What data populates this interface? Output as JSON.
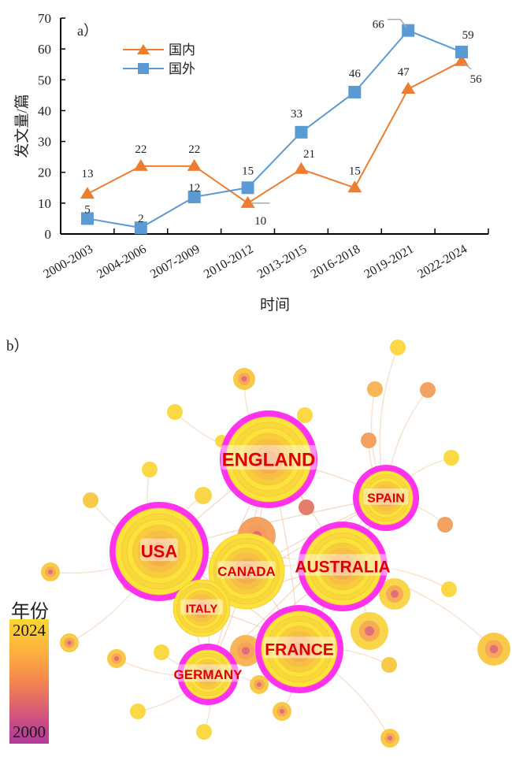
{
  "chart_data": [
    {
      "type": "line",
      "panel_label": "a）",
      "title": "",
      "xlabel": "时间",
      "ylabel": "发文量/篇",
      "ylim": [
        0,
        70
      ],
      "yticks": [
        0,
        10,
        20,
        30,
        40,
        50,
        60,
        70
      ],
      "categories": [
        "2000-2003",
        "2004-2006",
        "2007-2009",
        "2010-2012",
        "2013-2015",
        "2016-2018",
        "2019-2021",
        "2022-2024"
      ],
      "legend_position": "top-left",
      "grid": false,
      "series": [
        {
          "name": "国内",
          "marker": "triangle",
          "color": "#ed7d31",
          "values": [
            13,
            22,
            22,
            10,
            21,
            15,
            47,
            56
          ]
        },
        {
          "name": "国外",
          "marker": "square",
          "color": "#5b9bd5",
          "values": [
            5,
            2,
            12,
            15,
            33,
            46,
            66,
            59
          ]
        }
      ]
    },
    {
      "type": "network",
      "panel_label": "b）",
      "title": "",
      "colorbar": {
        "title": "年份",
        "min_label": "2000",
        "max_label": "2024",
        "min": 2000,
        "max": 2024
      },
      "labeled_nodes": [
        "ENGLAND",
        "SPAIN",
        "USA",
        "AUSTRALIA",
        "CANADA",
        "ITALY",
        "FRANCE",
        "GERMANY"
      ],
      "high_centrality_nodes": [
        "ENGLAND",
        "SPAIN",
        "USA",
        "AUSTRALIA",
        "FRANCE",
        "GERMANY"
      ],
      "colors": {
        "centrality_ring": "#ff33ee",
        "label": "#e00000",
        "recent": "#fbd634",
        "old": "#b33b98"
      }
    }
  ]
}
